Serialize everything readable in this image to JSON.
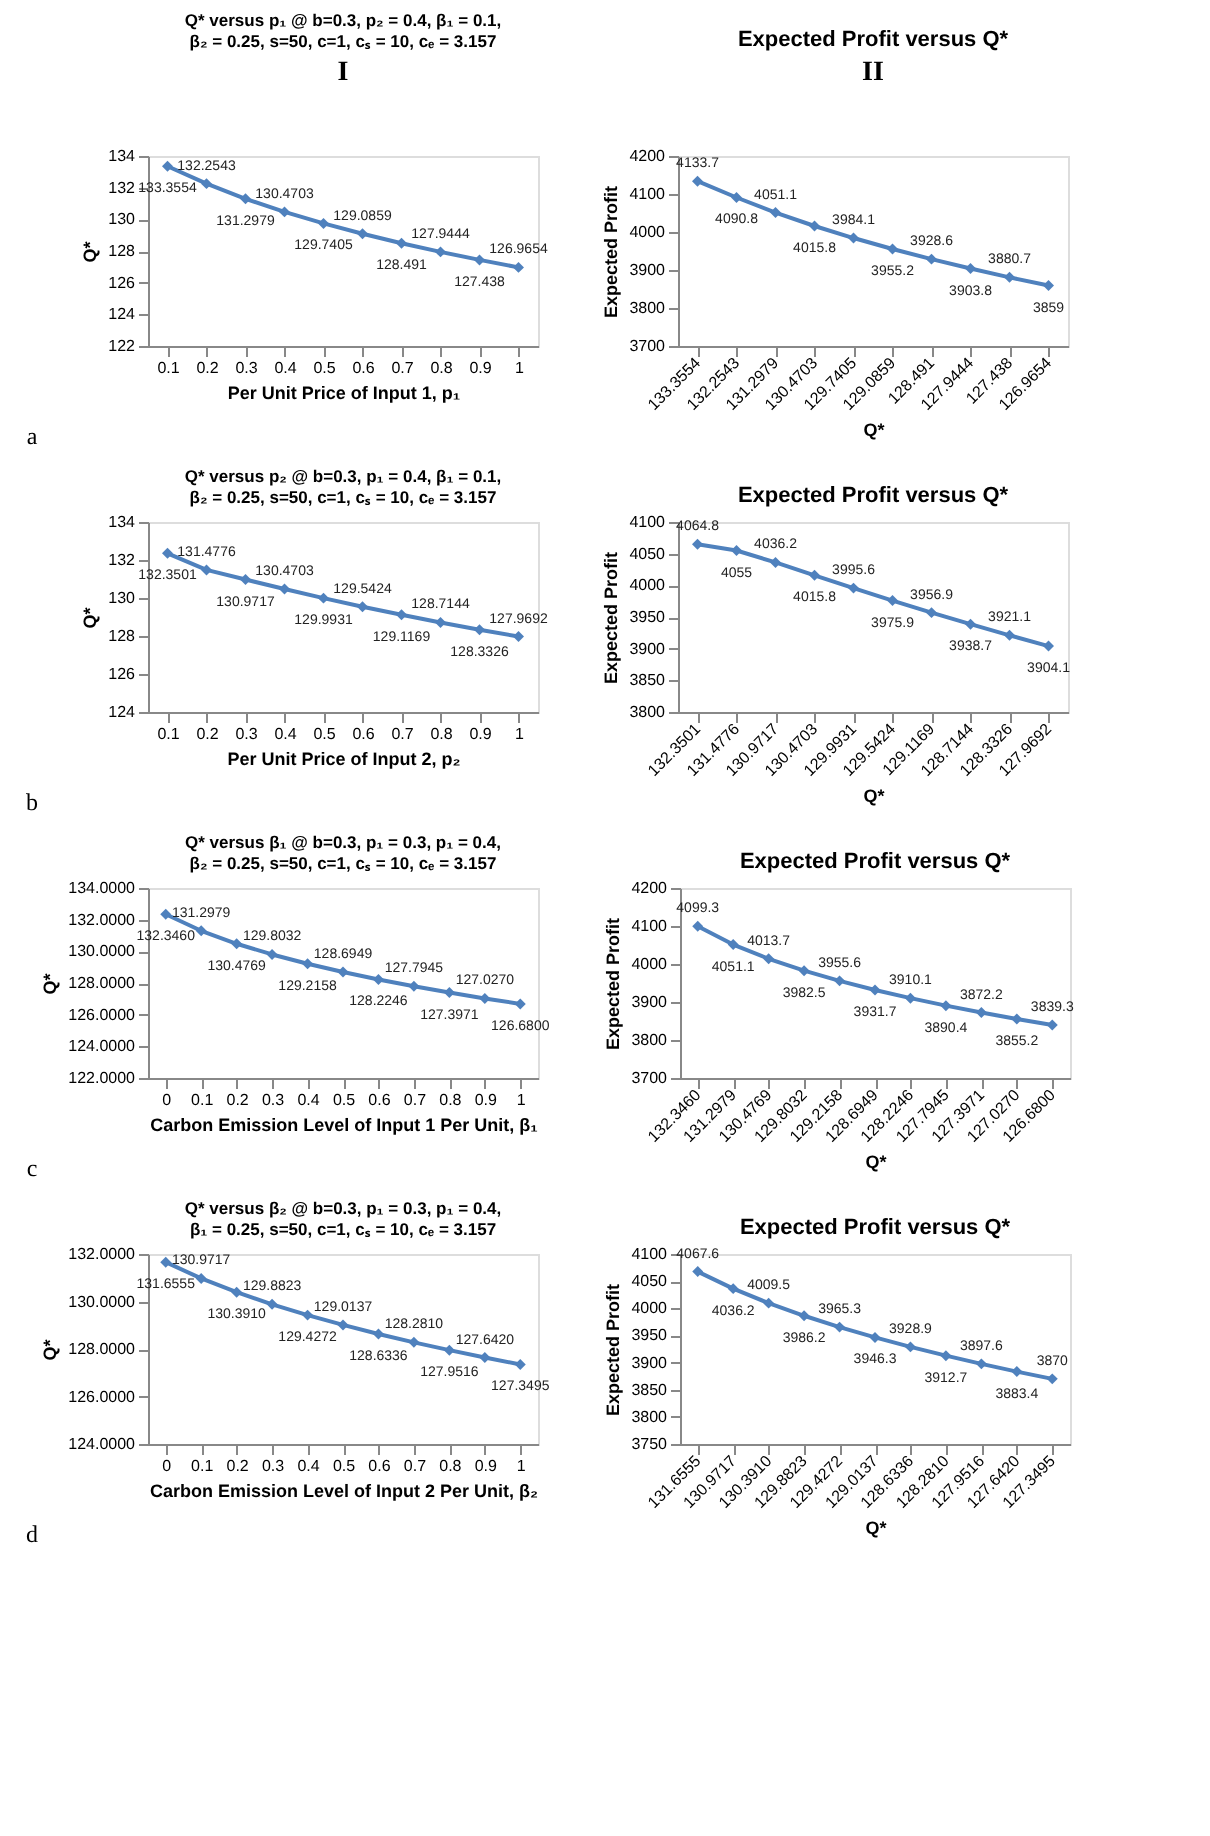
{
  "chart_data": [
    {
      "type": "line",
      "title": "Q* versus p₁ @ b=0.3, p₂ = 0.4, β₁ = 0.1, β₂ = 0.25, s=50, c=1, cₛ = 10, cₑ = 3.157",
      "xlabel": "Per Unit Price of Input 1, p₁",
      "ylabel": "Q*",
      "annotations": [
        "I",
        "a"
      ],
      "categories": [
        "0.1",
        "0.2",
        "0.3",
        "0.4",
        "0.5",
        "0.6",
        "0.7",
        "0.8",
        "0.9",
        "1"
      ],
      "series": [
        {
          "color": "#4f81bd",
          "values": [
            133.3554,
            132.2543,
            131.2979,
            130.4703,
            129.7405,
            129.0859,
            128.491,
            127.9444,
            127.438,
            126.9654
          ]
        }
      ],
      "ylim": [
        122,
        134
      ],
      "yticks": [
        122,
        124,
        126,
        128,
        130,
        132,
        134
      ],
      "data_labels": true,
      "marker": "diamond",
      "grid": false
    },
    {
      "type": "line",
      "title": "Expected Profit versus Q*",
      "xlabel": "Q*",
      "ylabel": "Expected Profit",
      "annotations": [
        "II"
      ],
      "categories": [
        "133.3554",
        "132.2543",
        "131.2979",
        "130.4703",
        "129.7405",
        "129.0859",
        "128.491",
        "127.9444",
        "127.438",
        "126.9654"
      ],
      "series": [
        {
          "color": "#4f81bd",
          "values": [
            4133.7,
            4090.8,
            4051.1,
            4015.8,
            3984.1,
            3955.2,
            3928.6,
            3903.8,
            3880.7,
            3859
          ]
        }
      ],
      "ylim": [
        3700,
        4200
      ],
      "yticks": [
        3700,
        3800,
        3900,
        4000,
        4100,
        4200
      ],
      "data_labels": true,
      "marker": "diamond",
      "grid": false
    },
    {
      "type": "line",
      "title": "Q* versus p₂ @ b=0.3, p₁ = 0.4, β₁ = 0.1, β₂ = 0.25, s=50, c=1, cₛ = 10, cₑ = 3.157",
      "xlabel": "Per Unit Price of Input 2, p₂",
      "ylabel": "Q*",
      "annotations": [
        "b"
      ],
      "categories": [
        "0.1",
        "0.2",
        "0.3",
        "0.4",
        "0.5",
        "0.6",
        "0.7",
        "0.8",
        "0.9",
        "1"
      ],
      "series": [
        {
          "color": "#4f81bd",
          "values": [
            132.3501,
            131.4776,
            130.9717,
            130.4703,
            129.9931,
            129.5424,
            129.1169,
            128.7144,
            128.3326,
            127.9692
          ]
        }
      ],
      "ylim": [
        124,
        134
      ],
      "yticks": [
        124,
        126,
        128,
        130,
        132,
        134
      ],
      "data_labels": true,
      "marker": "diamond",
      "grid": false
    },
    {
      "type": "line",
      "title": "Expected Profit versus Q*",
      "xlabel": "Q*",
      "ylabel": "Expected Profit",
      "categories": [
        "132.3501",
        "131.4776",
        "130.9717",
        "130.4703",
        "129.9931",
        "129.5424",
        "129.1169",
        "128.7144",
        "128.3326",
        "127.9692"
      ],
      "series": [
        {
          "color": "#4f81bd",
          "values": [
            4064.8,
            4055,
            4036.2,
            4015.8,
            3995.6,
            3975.9,
            3956.9,
            3938.7,
            3921.1,
            3904.1
          ]
        }
      ],
      "ylim": [
        3800,
        4100
      ],
      "yticks": [
        3800,
        3850,
        3900,
        3950,
        4000,
        4050,
        4100
      ],
      "data_labels": true,
      "marker": "diamond",
      "grid": false
    },
    {
      "type": "line",
      "title": "Q* versus β₁ @ b=0.3, p₁ = 0.3, p₁ = 0.4, β₂ = 0.25, s=50, c=1, cₛ = 10, cₑ = 3.157",
      "xlabel": "Carbon Emission  Level of Input 1 Per Unit, β₁",
      "ylabel": "Q*",
      "annotations": [
        "c"
      ],
      "categories": [
        "0",
        "0.1",
        "0.2",
        "0.3",
        "0.4",
        "0.5",
        "0.6",
        "0.7",
        "0.8",
        "0.9",
        "1"
      ],
      "series": [
        {
          "color": "#4f81bd",
          "values": [
            132.346,
            131.2979,
            130.4769,
            129.8032,
            129.2158,
            128.6949,
            128.2246,
            127.7945,
            127.3971,
            127.027,
            126.68
          ],
          "value_labels": [
            "132.3460",
            "131.2979",
            "130.4769",
            "129.8032",
            "129.2158",
            "128.6949",
            "128.2246",
            "127.7945",
            "127.3971",
            "127.0270",
            "126.6800"
          ]
        }
      ],
      "ylim": [
        122,
        134
      ],
      "yticks": [
        {
          "value": 122,
          "label": "122.0000"
        },
        {
          "value": 124,
          "label": "124.0000"
        },
        {
          "value": 126,
          "label": "126.0000"
        },
        {
          "value": 128,
          "label": "128.0000"
        },
        {
          "value": 130,
          "label": "130.0000"
        },
        {
          "value": 132,
          "label": "132.0000"
        },
        {
          "value": 134,
          "label": "134.0000"
        }
      ],
      "marker": "diamond",
      "grid": false
    },
    {
      "type": "line",
      "title": "Expected Profit versus Q*",
      "xlabel": "Q*",
      "ylabel": "Expected Profit",
      "categories": [
        "132.3460",
        "131.2979",
        "130.4769",
        "129.8032",
        "129.2158",
        "128.6949",
        "128.2246",
        "127.7945",
        "127.3971",
        "127.0270",
        "126.6800"
      ],
      "series": [
        {
          "color": "#4f81bd",
          "values": [
            4099.3,
            4051.1,
            4013.7,
            3982.5,
            3955.6,
            3931.7,
            3910.1,
            3890.4,
            3872.2,
            3855.2,
            3839.3
          ]
        }
      ],
      "ylim": [
        3700,
        4200
      ],
      "yticks": [
        3700,
        3800,
        3900,
        4000,
        4100,
        4200
      ],
      "data_labels": true,
      "marker": "diamond",
      "grid": false
    },
    {
      "type": "line",
      "title": "Q* versus β₂ @ b=0.3, p₁ = 0.3, p₁ = 0.4, β₁ = 0.25, s=50, c=1, cₛ = 10, cₑ = 3.157",
      "xlabel": "Carbon Emission  Level of Input 2 Per Unit, β₂",
      "ylabel": "Q*",
      "annotations": [
        "d"
      ],
      "categories": [
        "0",
        "0.1",
        "0.2",
        "0.3",
        "0.4",
        "0.5",
        "0.6",
        "0.7",
        "0.8",
        "0.9",
        "1"
      ],
      "series": [
        {
          "color": "#4f81bd",
          "values": [
            131.6555,
            130.9717,
            130.391,
            129.8823,
            129.4272,
            129.0137,
            128.6336,
            128.281,
            127.9516,
            127.642,
            127.3495
          ],
          "value_labels": [
            "131.6555",
            "130.9717",
            "130.3910",
            "129.8823",
            "129.4272",
            "129.0137",
            "128.6336",
            "128.2810",
            "127.9516",
            "127.6420",
            "127.3495"
          ]
        }
      ],
      "ylim": [
        124,
        132
      ],
      "yticks": [
        {
          "value": 124,
          "label": "124.0000"
        },
        {
          "value": 126,
          "label": "126.0000"
        },
        {
          "value": 128,
          "label": "128.0000"
        },
        {
          "value": 130,
          "label": "130.0000"
        },
        {
          "value": 132,
          "label": "132.0000"
        }
      ],
      "marker": "diamond",
      "grid": false
    },
    {
      "type": "line",
      "title": "Expected Profit versus Q*",
      "xlabel": "Q*",
      "ylabel": "Expected Profit",
      "categories": [
        "131.6555",
        "130.9717",
        "130.3910",
        "129.8823",
        "129.4272",
        "129.0137",
        "128.6336",
        "128.2810",
        "127.9516",
        "127.6420",
        "127.3495"
      ],
      "series": [
        {
          "color": "#4f81bd",
          "values": [
            4067.6,
            4036.2,
            4009.5,
            3986.2,
            3965.3,
            3946.3,
            3928.9,
            3912.7,
            3897.6,
            3883.4,
            3870
          ]
        }
      ],
      "ylim": [
        3750,
        4100
      ],
      "yticks": [
        3750,
        3800,
        3850,
        3900,
        3950,
        4000,
        4050,
        4100
      ],
      "data_labels": true,
      "marker": "diamond",
      "grid": false
    }
  ]
}
